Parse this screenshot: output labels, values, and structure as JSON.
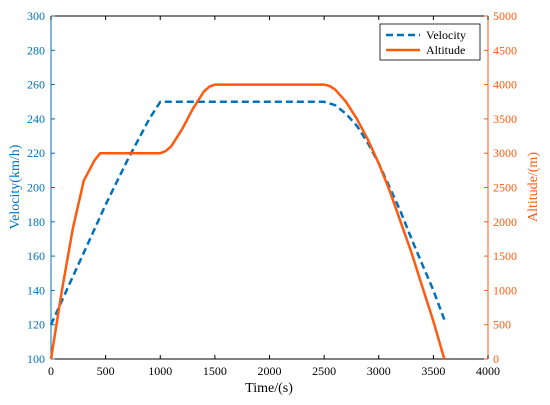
{
  "chart_data": {
    "type": "line",
    "xlabel": "Time/(s)",
    "ylabel_left": "Velocity(km/h)",
    "ylabel_right": "Altitude/(m)",
    "xlim": [
      0,
      4000
    ],
    "ylim_left": [
      100,
      300
    ],
    "ylim_right": [
      0,
      5000
    ],
    "x_ticks": [
      0,
      500,
      1000,
      1500,
      2000,
      2500,
      3000,
      3500,
      4000
    ],
    "y_left_ticks": [
      100,
      120,
      140,
      160,
      180,
      200,
      220,
      240,
      260,
      280,
      300
    ],
    "y_right_ticks": [
      0,
      500,
      1000,
      1500,
      2000,
      2500,
      3000,
      3500,
      4000,
      4500,
      5000
    ],
    "grid": false,
    "legend_position": "top-right",
    "colors": {
      "velocity": "#0072BD",
      "altitude": "#FF5A0F",
      "axis": "#000000"
    },
    "series": [
      {
        "name": "Velocity",
        "axis": "left",
        "style": "dashed",
        "x": [
          0,
          100,
          200,
          300,
          400,
          500,
          600,
          700,
          800,
          900,
          1000,
          1500,
          2000,
          2500,
          2600,
          2700,
          2800,
          2900,
          3000,
          3100,
          3200,
          3300,
          3400,
          3500,
          3600
        ],
        "y": [
          120,
          134,
          148,
          162,
          176,
          190,
          203,
          216,
          228,
          240,
          250,
          250,
          250,
          250,
          248,
          243,
          236,
          226,
          214,
          200,
          186,
          170,
          155,
          140,
          123
        ]
      },
      {
        "name": "Altitude",
        "axis": "right",
        "style": "solid",
        "x": [
          0,
          100,
          200,
          300,
          400,
          450,
          500,
          600,
          700,
          800,
          900,
          1000,
          1050,
          1100,
          1200,
          1300,
          1400,
          1450,
          1500,
          1600,
          2000,
          2500,
          2550,
          2600,
          2700,
          2800,
          2900,
          3000,
          3100,
          3200,
          3300,
          3400,
          3500,
          3600
        ],
        "y": [
          0,
          1000,
          1900,
          2600,
          2900,
          3000,
          3000,
          3000,
          3000,
          3000,
          3000,
          3000,
          3030,
          3100,
          3350,
          3650,
          3900,
          3970,
          4000,
          4000,
          4000,
          4000,
          3980,
          3930,
          3750,
          3500,
          3200,
          2850,
          2450,
          2000,
          1550,
          1050,
          550,
          0
        ]
      }
    ]
  }
}
